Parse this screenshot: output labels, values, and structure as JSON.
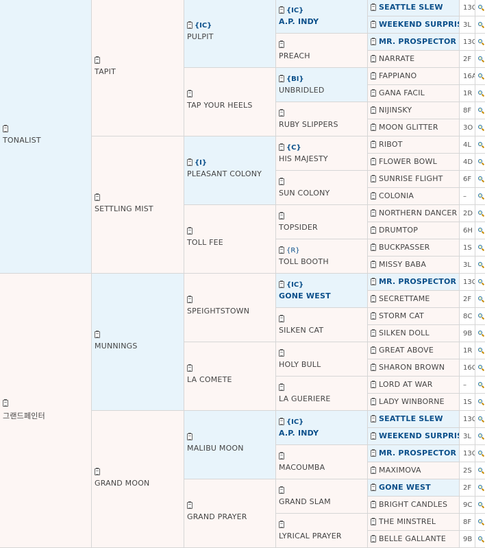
{
  "pedigree": {
    "g1": [
      {
        "name": "TONALIST"
      },
      {
        "name": "그랜드페인터"
      }
    ],
    "g2": [
      {
        "name": "TAPIT"
      },
      {
        "name": "SETTLING MIST"
      },
      {
        "name": "MUNNINGS"
      },
      {
        "name": "GRAND MOON"
      }
    ],
    "g3": [
      {
        "tag": "{IC}",
        "name": "PULPIT"
      },
      {
        "name": "TAP YOUR HEELS"
      },
      {
        "tag": "{I}",
        "name": "PLEASANT COLONY"
      },
      {
        "name": "TOLL FEE"
      },
      {
        "name": "SPEIGHTSTOWN"
      },
      {
        "name": "LA COMETE"
      },
      {
        "name": "MALIBU MOON"
      },
      {
        "name": "GRAND PRAYER"
      }
    ],
    "g4": [
      {
        "tag": "{IC}",
        "name": "A.P. INDY"
      },
      {
        "name": "PREACH"
      },
      {
        "tag": "{BI}",
        "name": "UNBRIDLED"
      },
      {
        "name": "RUBY SLIPPERS"
      },
      {
        "tag": "{C}",
        "name": "HIS MAJESTY"
      },
      {
        "name": "SUN COLONY"
      },
      {
        "name": "TOPSIDER"
      },
      {
        "tag": "{R}",
        "name": "TOLL BOOTH"
      },
      {
        "tag": "{IC}",
        "name": "GONE WEST"
      },
      {
        "name": "SILKEN CAT"
      },
      {
        "name": "HOLY BULL"
      },
      {
        "name": "LA GUERIERE"
      },
      {
        "tag": "{IC}",
        "name": "A.P. INDY"
      },
      {
        "name": "MACOUMBA"
      },
      {
        "name": "GRAND SLAM"
      },
      {
        "name": "LYRICAL PRAYER"
      }
    ],
    "g5": [
      {
        "name": "SEATTLE SLEW",
        "code": "13C"
      },
      {
        "name": "WEEKEND SURPRISE",
        "code": "3L"
      },
      {
        "name": "MR. PROSPECTOR",
        "code": "13C"
      },
      {
        "name": "NARRATE",
        "code": "2F"
      },
      {
        "name": "FAPPIANO",
        "code": "16A"
      },
      {
        "name": "GANA FACIL",
        "code": "1R"
      },
      {
        "name": "NIJINSKY",
        "code": "8F"
      },
      {
        "name": "MOON GLITTER",
        "code": "3O"
      },
      {
        "name": "RIBOT",
        "code": "4L"
      },
      {
        "name": "FLOWER BOWL",
        "code": "4D"
      },
      {
        "name": "SUNRISE FLIGHT",
        "code": "6F"
      },
      {
        "name": "COLONIA",
        "code": "–"
      },
      {
        "name": "NORTHERN DANCER",
        "code": "2D"
      },
      {
        "name": "DRUMTOP",
        "code": "6H"
      },
      {
        "name": "BUCKPASSER",
        "code": "1S"
      },
      {
        "name": "MISSY BABA",
        "code": "3L"
      },
      {
        "name": "MR. PROSPECTOR",
        "code": "13C"
      },
      {
        "name": "SECRETTAME",
        "code": "2F"
      },
      {
        "name": "STORM CAT",
        "code": "8C"
      },
      {
        "name": "SILKEN DOLL",
        "code": "9B"
      },
      {
        "name": "GREAT ABOVE",
        "code": "1R"
      },
      {
        "name": "SHARON BROWN",
        "code": "16C"
      },
      {
        "name": "LORD AT WAR",
        "code": "–"
      },
      {
        "name": "LADY WINBORNE",
        "code": "1S"
      },
      {
        "name": "SEATTLE SLEW",
        "code": "13C"
      },
      {
        "name": "WEEKEND SURPRISE",
        "code": "3L"
      },
      {
        "name": "MR. PROSPECTOR",
        "code": "13C"
      },
      {
        "name": "MAXIMOVA",
        "code": "2S"
      },
      {
        "name": "GONE WEST",
        "code": "2F"
      },
      {
        "name": "BRIGHT CANDLES",
        "code": "9C"
      },
      {
        "name": "THE MINSTREL",
        "code": "8F"
      },
      {
        "name": "BELLE GALLANTE",
        "code": "9B"
      }
    ]
  }
}
